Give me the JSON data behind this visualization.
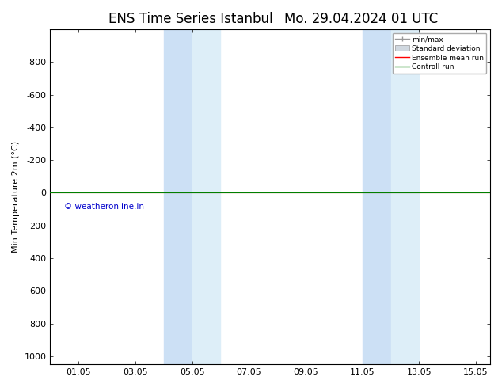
{
  "title_left": "ENS Time Series Istanbul",
  "title_right": "Mo. 29.04.2024 01 UTC",
  "ylabel": "Min Temperature 2m (°C)",
  "ylim": [
    -1000,
    1050
  ],
  "yticks": [
    -800,
    -600,
    -400,
    -200,
    0,
    200,
    400,
    600,
    800,
    1000
  ],
  "xtick_labels": [
    "01.05",
    "03.05",
    "05.05",
    "07.05",
    "09.05",
    "11.05",
    "13.05",
    "15.05"
  ],
  "xtick_positions": [
    1,
    3,
    5,
    7,
    9,
    11,
    13,
    15
  ],
  "xlim": [
    0,
    15.5
  ],
  "shaded_bands": [
    {
      "start": 4.0,
      "end": 5.0
    },
    {
      "start": 5.0,
      "end": 6.0
    },
    {
      "start": 11.0,
      "end": 12.0
    },
    {
      "start": 12.0,
      "end": 13.0
    }
  ],
  "shade_colors": [
    "#cce0f5",
    "#ddeef8",
    "#cce0f5",
    "#ddeef8"
  ],
  "ensemble_mean_color": "#ff0000",
  "control_run_color": "#008000",
  "ensemble_mean_y": 0,
  "control_run_y": 0,
  "copyright_text": "© weatheronline.in",
  "copyright_color": "#0000cc",
  "legend_minmax_color": "#999999",
  "legend_stddev_color": "#cccccc",
  "background_color": "#ffffff",
  "plot_bg_color": "#ffffff",
  "title_fontsize": 12,
  "axis_fontsize": 8,
  "tick_fontsize": 8
}
